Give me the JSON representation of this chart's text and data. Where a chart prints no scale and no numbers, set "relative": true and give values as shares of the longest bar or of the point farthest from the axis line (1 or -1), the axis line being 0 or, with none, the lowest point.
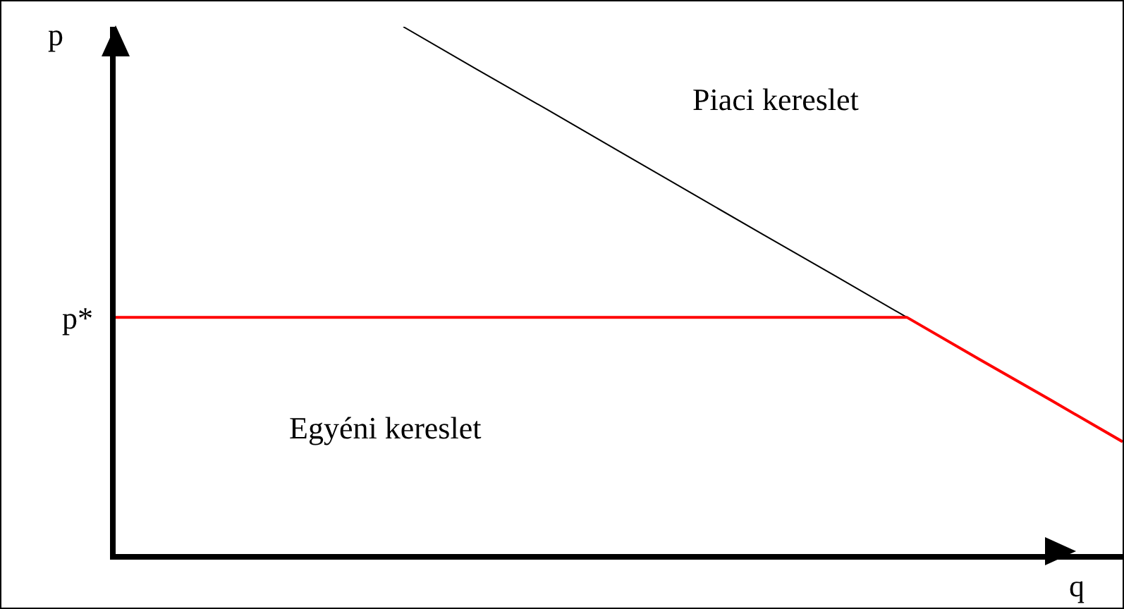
{
  "chart_data": {
    "type": "line",
    "relative": true,
    "xlabel": "q",
    "ylabel": "p",
    "categories": [
      null,
      null,
      null,
      null,
      null,
      null,
      null,
      null,
      null,
      null,
      null,
      null,
      null,
      null,
      null
    ],
    "series": [
      {
        "color": "#000000",
        "values": [
          null,
          null,
          null,
          null,
          1,
          0.921,
          0.843,
          0.764,
          0.685,
          0.606,
          0.528,
          0.449,
          null,
          null,
          null
        ]
      },
      {
        "color": "#ff0000",
        "values": [
          0.449,
          0.449,
          0.449,
          0.449,
          0.449,
          0.449,
          0.449,
          0.449,
          0.449,
          0.449,
          0.449,
          0.449,
          0.37,
          0.292,
          0.213
        ]
      }
    ],
    "annotations": [
      "Piaci kereslet",
      "Egyéni kereslet",
      "p*"
    ],
    "grid": false,
    "marker": "none",
    "line_style": "solid"
  }
}
